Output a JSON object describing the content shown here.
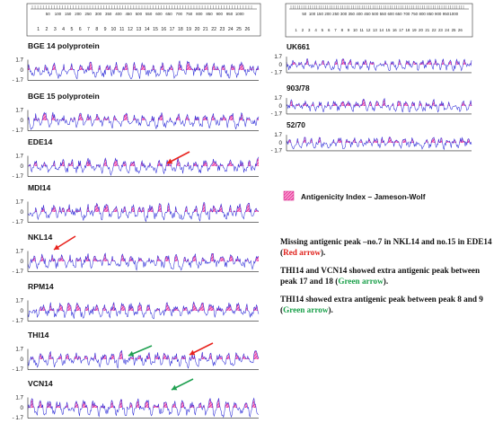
{
  "ruler_ticks": [
    "50",
    "100",
    "150",
    "200",
    "250",
    "300",
    "350",
    "400",
    "450",
    "500",
    "550",
    "600",
    "650",
    "700",
    "750",
    "800",
    "850",
    "900",
    "950",
    "1000"
  ],
  "peak_numbers": [
    "1",
    "2",
    "3",
    "4",
    "5",
    "6",
    "7",
    "8",
    "9",
    "10",
    "11",
    "12",
    "13",
    "14",
    "15",
    "16",
    "17",
    "18",
    "19",
    "20",
    "21",
    "22",
    "23",
    "24",
    "25",
    "26"
  ],
  "axis_labels": {
    "top": "1.7",
    "mid": "0",
    "bottom": "- 1.7"
  },
  "left_panels": [
    {
      "label": "BGE 14 polyprotein"
    },
    {
      "label": "BGE 15 polyprotein"
    },
    {
      "label": "EDE14"
    },
    {
      "label": "MDI14"
    },
    {
      "label": "NKL14"
    },
    {
      "label": "RPM14"
    },
    {
      "label": "THI14"
    },
    {
      "label": "VCN14"
    }
  ],
  "right_panels": [
    {
      "label": "UK661"
    },
    {
      "label": "903/78"
    },
    {
      "label": "52/70"
    }
  ],
  "legend": {
    "label": "Antigenicity Index – Jameson-Wolf"
  },
  "notes": {
    "n1_a": "Missing antigenic peak –no.7 in NKL14 and no.15 in EDE14 (",
    "n1_red": "Red arrow",
    "n1_b": ").",
    "n2_a": " THI14 and VCN14 showed extra antigenic peak between peak 17 and 18 (",
    "n2_green": "Green arrow",
    "n2_b": ").",
    "n3_a": "THI14 showed extra antigenic peak between peak 8 and 9 (",
    "n3_green": "Green arrow",
    "n3_b": ")."
  },
  "colors": {
    "fill": "#e8168f",
    "line": "#2a2ad8",
    "red_arrow": "#e8231d",
    "green_arrow": "#1ea050"
  }
}
